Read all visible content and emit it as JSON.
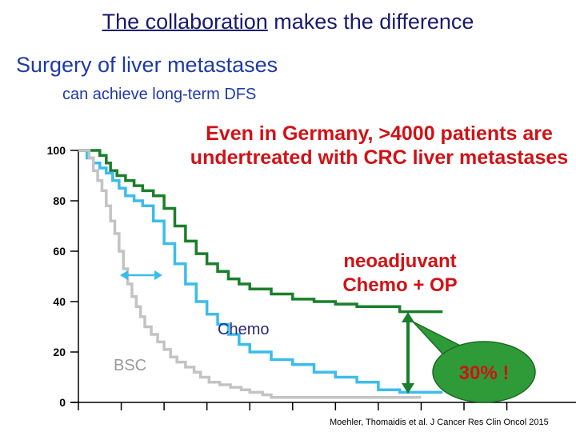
{
  "header": {
    "title_underlined": "The collaboration",
    "title_rest": " makes the difference",
    "subtitle": "Surgery of liver metastases",
    "subtitle2": "can achieve long-term DFS"
  },
  "callouts": {
    "headline": "Even in Germany, >4000 patients are undertreated with CRC liver metastases",
    "neo_line1": "neoadjuvant",
    "neo_line2": "Chemo + OP",
    "bubble": "30% !"
  },
  "citation": "Moehler, Thomaidis et al. J Cancer Res Clin Oncol 2015",
  "colors": {
    "neoadjuvant": "#1a7f2a",
    "chemo": "#3bbcec",
    "bsc": "#c3c3c3",
    "text_red": "#d01216",
    "bubble": "#2f9a38"
  },
  "chart_data": {
    "type": "line",
    "step": true,
    "ylim": [
      0,
      100
    ],
    "yticks": [
      "0",
      "20",
      "40",
      "60",
      "80",
      "100"
    ],
    "xticks_count": 9,
    "series": [
      {
        "name": "neoadjuvant Chemo + OP",
        "key": "neoadjuvant",
        "points": [
          [
            0,
            100
          ],
          [
            0.25,
            100
          ],
          [
            0.5,
            98
          ],
          [
            0.65,
            95
          ],
          [
            0.75,
            92
          ],
          [
            0.9,
            90
          ],
          [
            1.1,
            88
          ],
          [
            1.3,
            86
          ],
          [
            1.5,
            84
          ],
          [
            1.75,
            82
          ],
          [
            2,
            77
          ],
          [
            2.25,
            70
          ],
          [
            2.5,
            64
          ],
          [
            2.75,
            59
          ],
          [
            3,
            55
          ],
          [
            3.25,
            52
          ],
          [
            3.5,
            49
          ],
          [
            3.75,
            47
          ],
          [
            4,
            45
          ],
          [
            4.5,
            43
          ],
          [
            5,
            41
          ],
          [
            5.5,
            40
          ],
          [
            6,
            39
          ],
          [
            6.5,
            38
          ],
          [
            7,
            38
          ],
          [
            7.5,
            36
          ],
          [
            8.5,
            36
          ]
        ]
      },
      {
        "name": "Chemo",
        "key": "chemo",
        "points": [
          [
            0,
            100
          ],
          [
            0.2,
            97
          ],
          [
            0.35,
            95
          ],
          [
            0.5,
            93
          ],
          [
            0.65,
            91
          ],
          [
            0.8,
            88
          ],
          [
            0.95,
            85
          ],
          [
            1.1,
            82
          ],
          [
            1.3,
            80
          ],
          [
            1.5,
            78
          ],
          [
            1.75,
            72
          ],
          [
            2,
            63
          ],
          [
            2.25,
            55
          ],
          [
            2.5,
            47
          ],
          [
            2.75,
            40
          ],
          [
            3,
            35
          ],
          [
            3.25,
            31
          ],
          [
            3.5,
            27
          ],
          [
            3.75,
            23
          ],
          [
            4,
            20
          ],
          [
            4.5,
            17
          ],
          [
            5,
            15
          ],
          [
            5.5,
            12
          ],
          [
            6,
            10
          ],
          [
            6.5,
            8
          ],
          [
            7,
            5
          ],
          [
            7.5,
            4
          ],
          [
            8,
            4
          ],
          [
            8.5,
            4
          ]
        ]
      },
      {
        "name": "BSC",
        "key": "bsc",
        "points": [
          [
            0,
            100
          ],
          [
            0.25,
            97
          ],
          [
            0.35,
            92
          ],
          [
            0.45,
            88
          ],
          [
            0.55,
            84
          ],
          [
            0.65,
            78
          ],
          [
            0.75,
            72
          ],
          [
            0.85,
            67
          ],
          [
            0.95,
            60
          ],
          [
            1.05,
            53
          ],
          [
            1.15,
            47
          ],
          [
            1.25,
            42
          ],
          [
            1.35,
            38
          ],
          [
            1.45,
            34
          ],
          [
            1.55,
            30
          ],
          [
            1.7,
            27
          ],
          [
            1.85,
            24
          ],
          [
            2,
            21
          ],
          [
            2.15,
            18
          ],
          [
            2.3,
            16
          ],
          [
            2.5,
            14
          ],
          [
            2.7,
            12
          ],
          [
            2.85,
            10
          ],
          [
            3.05,
            8
          ],
          [
            3.3,
            7
          ],
          [
            3.55,
            6
          ],
          [
            3.8,
            5
          ],
          [
            4,
            4
          ],
          [
            4.3,
            3
          ],
          [
            4.5,
            2
          ],
          [
            5,
            2
          ],
          [
            6,
            2
          ],
          [
            7,
            2
          ],
          [
            8,
            2
          ]
        ]
      }
    ],
    "series_labels": {
      "chemo": "Chemo",
      "bsc": "BSC"
    }
  }
}
